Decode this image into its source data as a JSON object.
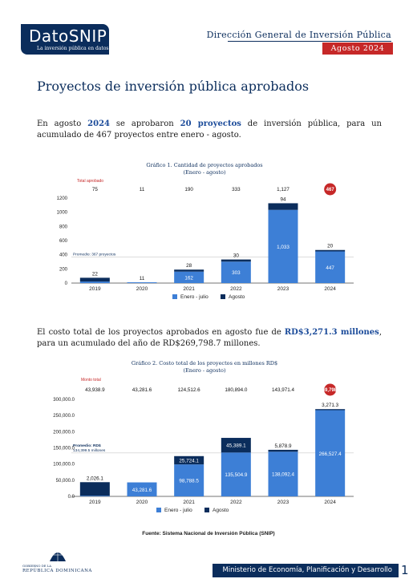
{
  "header": {
    "logo_title": "DatoSNIP",
    "logo_subtitle": "La inversión pública en datos",
    "org": "Dirección General de Inversión Pública",
    "date": "Agosto 2024"
  },
  "section_title": "Proyectos de inversión pública aprobados",
  "paragraph1": {
    "t1": "En agosto ",
    "year": "2024",
    "t2": " se aprobaron ",
    "count": "20 proyectos",
    "t3": " de inversión pública, para un acumulado de 467 proyectos entre enero - agosto."
  },
  "paragraph2": {
    "t1": "El costo total de los proyectos aprobados en agosto fue de ",
    "amount": "RD$3,271.3 millones",
    "t2": ", para un acumulado del año de RD$269,798.7 millones."
  },
  "source": "Fuente: Sistema Nacional de Inversión Pública (SNIP)",
  "footer": {
    "ministry": "Ministerio de Economía, Planificación y Desarrollo",
    "page": "1",
    "gob_small": "GOBIERNO DE LA",
    "gob_name": "REPÚBLICA DOMINICANA"
  },
  "colors": {
    "navy": "#0b2d5c",
    "bar_blue": "#3d7fd6",
    "red": "#c62828"
  },
  "chart_data": [
    {
      "type": "bar",
      "stacked": true,
      "title": "Gráfico 1. Cantidad de proyectos aprobados",
      "subtitle": "(Enero - agosto)",
      "total_label": "Total aprobado",
      "categories": [
        "2019",
        "2020",
        "2021",
        "2022",
        "2023",
        "2024"
      ],
      "totals": [
        "75",
        "11",
        "190",
        "333",
        "1,127",
        "467"
      ],
      "series": [
        {
          "name": "Enero - julio",
          "values": [
            22,
            11,
            162,
            303,
            1033,
            447
          ],
          "labels": [
            "22",
            "11",
            "162",
            "303",
            "1,033",
            "447"
          ]
        },
        {
          "name": "Agosto",
          "values": [
            53,
            0,
            28,
            30,
            94,
            20
          ],
          "labels": [
            "",
            "",
            "28",
            "30",
            "94",
            "20"
          ]
        }
      ],
      "ylim": [
        0,
        1200
      ],
      "yticks": [
        "0",
        "200",
        "400",
        "600",
        "800",
        "1000",
        "1200"
      ],
      "average": {
        "label": "Promedio: 367 proyectos",
        "value": 367
      },
      "legend": "bottom"
    },
    {
      "type": "bar",
      "stacked": true,
      "title": "Gráfico 2. Costo total de los proyectos en millones RD$",
      "subtitle": "(Enero - agosto)",
      "total_label": "Monto total",
      "categories": [
        "2019",
        "2020",
        "2021",
        "2022",
        "2023",
        "2024"
      ],
      "totals": [
        "43,938.9",
        "43,281.6",
        "124,512.6",
        "180,894.0",
        "143,971.4",
        "269,798.7"
      ],
      "series": [
        {
          "name": "Enero - julio",
          "values": [
            2026.1,
            43281.6,
            98788.5,
            135504.9,
            138092.4,
            266527.4
          ],
          "labels": [
            "2,026.1",
            "43,281.6",
            "98,788.5",
            "135,504.9",
            "138,092.4",
            "266,527.4"
          ]
        },
        {
          "name": "Agosto",
          "values": [
            41912.8,
            0,
            25724.1,
            45389.1,
            5878.9,
            3271.3
          ],
          "labels": [
            "",
            "",
            "25,724.1",
            "45,389.1",
            "5,878.9",
            "3,271.3"
          ]
        }
      ],
      "ylim": [
        0,
        300000
      ],
      "yticks": [
        "0.0",
        "50,000.0",
        "100,000.0",
        "150,000.0",
        "200,000.0",
        "250,000.0",
        "300,000.0"
      ],
      "average": {
        "label": "Promedio: RD$ 134,399.5 millones",
        "label_line1": "Promedio: RD$",
        "label_line2": "134,399.5 millones",
        "value": 134399.5
      },
      "legend": "bottom"
    }
  ]
}
